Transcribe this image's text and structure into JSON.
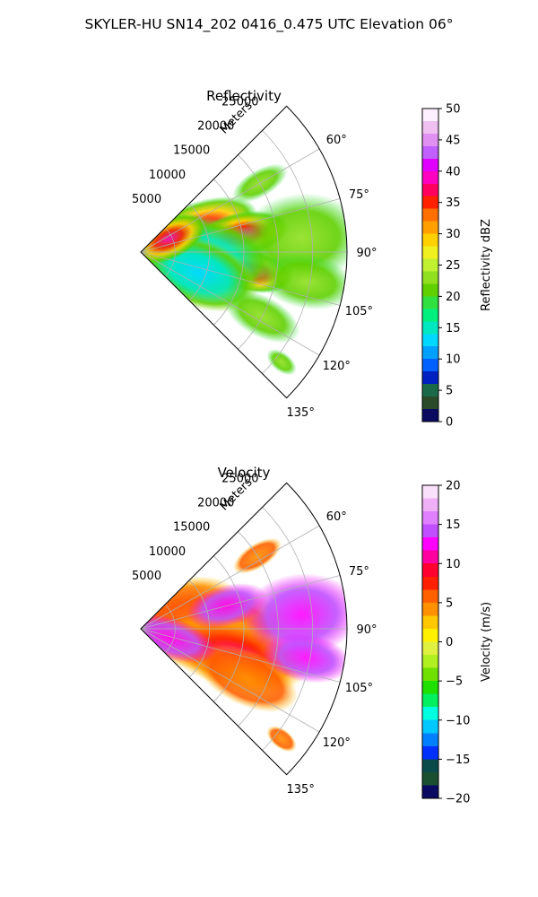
{
  "figure": {
    "suptitle": "SKYLER-HU  SN14_202  0416_0.475 UTC Elevation 06°"
  },
  "chart_data": [
    {
      "type": "heatmap",
      "subtype": "polar-ppi",
      "title": "Reflectivity",
      "radial_axis_label": "Meters",
      "radial_ticks": [
        5000,
        10000,
        15000,
        20000,
        25000
      ],
      "radial_tick_labels": [
        "5000",
        "10000",
        "15000",
        "20000",
        "25000"
      ],
      "rmax": 30000,
      "azimuth_range_deg": [
        45,
        135
      ],
      "azimuth_ticks": [
        60,
        75,
        90,
        105,
        120,
        135
      ],
      "azimuth_tick_labels": [
        "60°",
        "75°",
        "90°",
        "105°",
        "120°",
        "135°"
      ],
      "colorbar": {
        "label": "Reflectivity dBZ",
        "vmin": 0,
        "vmax": 50,
        "ticks": [
          0,
          5,
          10,
          15,
          20,
          25,
          30,
          35,
          40,
          45,
          50
        ],
        "tick_labels": [
          "0",
          "5",
          "10",
          "15",
          "20",
          "25",
          "30",
          "35",
          "40",
          "45",
          "50"
        ],
        "colors": [
          "#0a0a60",
          "#2a4a2a",
          "#1a6a4a",
          "#0020c0",
          "#0060ff",
          "#00a0ff",
          "#00d8ff",
          "#00e8c0",
          "#00f080",
          "#30e040",
          "#60d000",
          "#90e020",
          "#c0f030",
          "#f0f020",
          "#ffd000",
          "#ffa000",
          "#ff7000",
          "#ff2000",
          "#ff0060",
          "#ff00c0",
          "#e000ff",
          "#c060ff",
          "#e090f0",
          "#f0c0f0",
          "#fff0ff"
        ]
      },
      "description_values": "mostly 15-25 dBZ echoes with cores of 35-45 dBZ near azimuth 65-80° at 8-12 km and near 105° at 17 km"
    },
    {
      "type": "heatmap",
      "subtype": "polar-ppi",
      "title": "Velocity",
      "radial_axis_label": "Meters",
      "radial_ticks": [
        5000,
        10000,
        15000,
        20000,
        25000
      ],
      "radial_tick_labels": [
        "5000",
        "10000",
        "15000",
        "20000",
        "25000"
      ],
      "rmax": 30000,
      "azimuth_range_deg": [
        45,
        135
      ],
      "azimuth_ticks": [
        60,
        75,
        90,
        105,
        120,
        135
      ],
      "azimuth_tick_labels": [
        "60°",
        "75°",
        "90°",
        "105°",
        "120°",
        "135°"
      ],
      "colorbar": {
        "label": "Velocity (m/s)",
        "vmin": -20,
        "vmax": 20,
        "ticks": [
          -20,
          -15,
          -10,
          -5,
          0,
          5,
          10,
          15,
          20
        ],
        "tick_labels": [
          "−20",
          "−15",
          "−10",
          "−5",
          "0",
          "5",
          "10",
          "15",
          "20"
        ],
        "colors": [
          "#0a0a60",
          "#1a5030",
          "#0a4a4a",
          "#0030ff",
          "#0080ff",
          "#00c8ff",
          "#00ffe0",
          "#00f060",
          "#20e000",
          "#70e000",
          "#b0f020",
          "#e0f040",
          "#fff000",
          "#ffc800",
          "#ff9000",
          "#ff6000",
          "#ff2000",
          "#ff0030",
          "#ff00a0",
          "#ff00ff",
          "#c050ff",
          "#e080ff",
          "#f0b0f8",
          "#fbe0fb"
        ]
      }
    }
  ]
}
